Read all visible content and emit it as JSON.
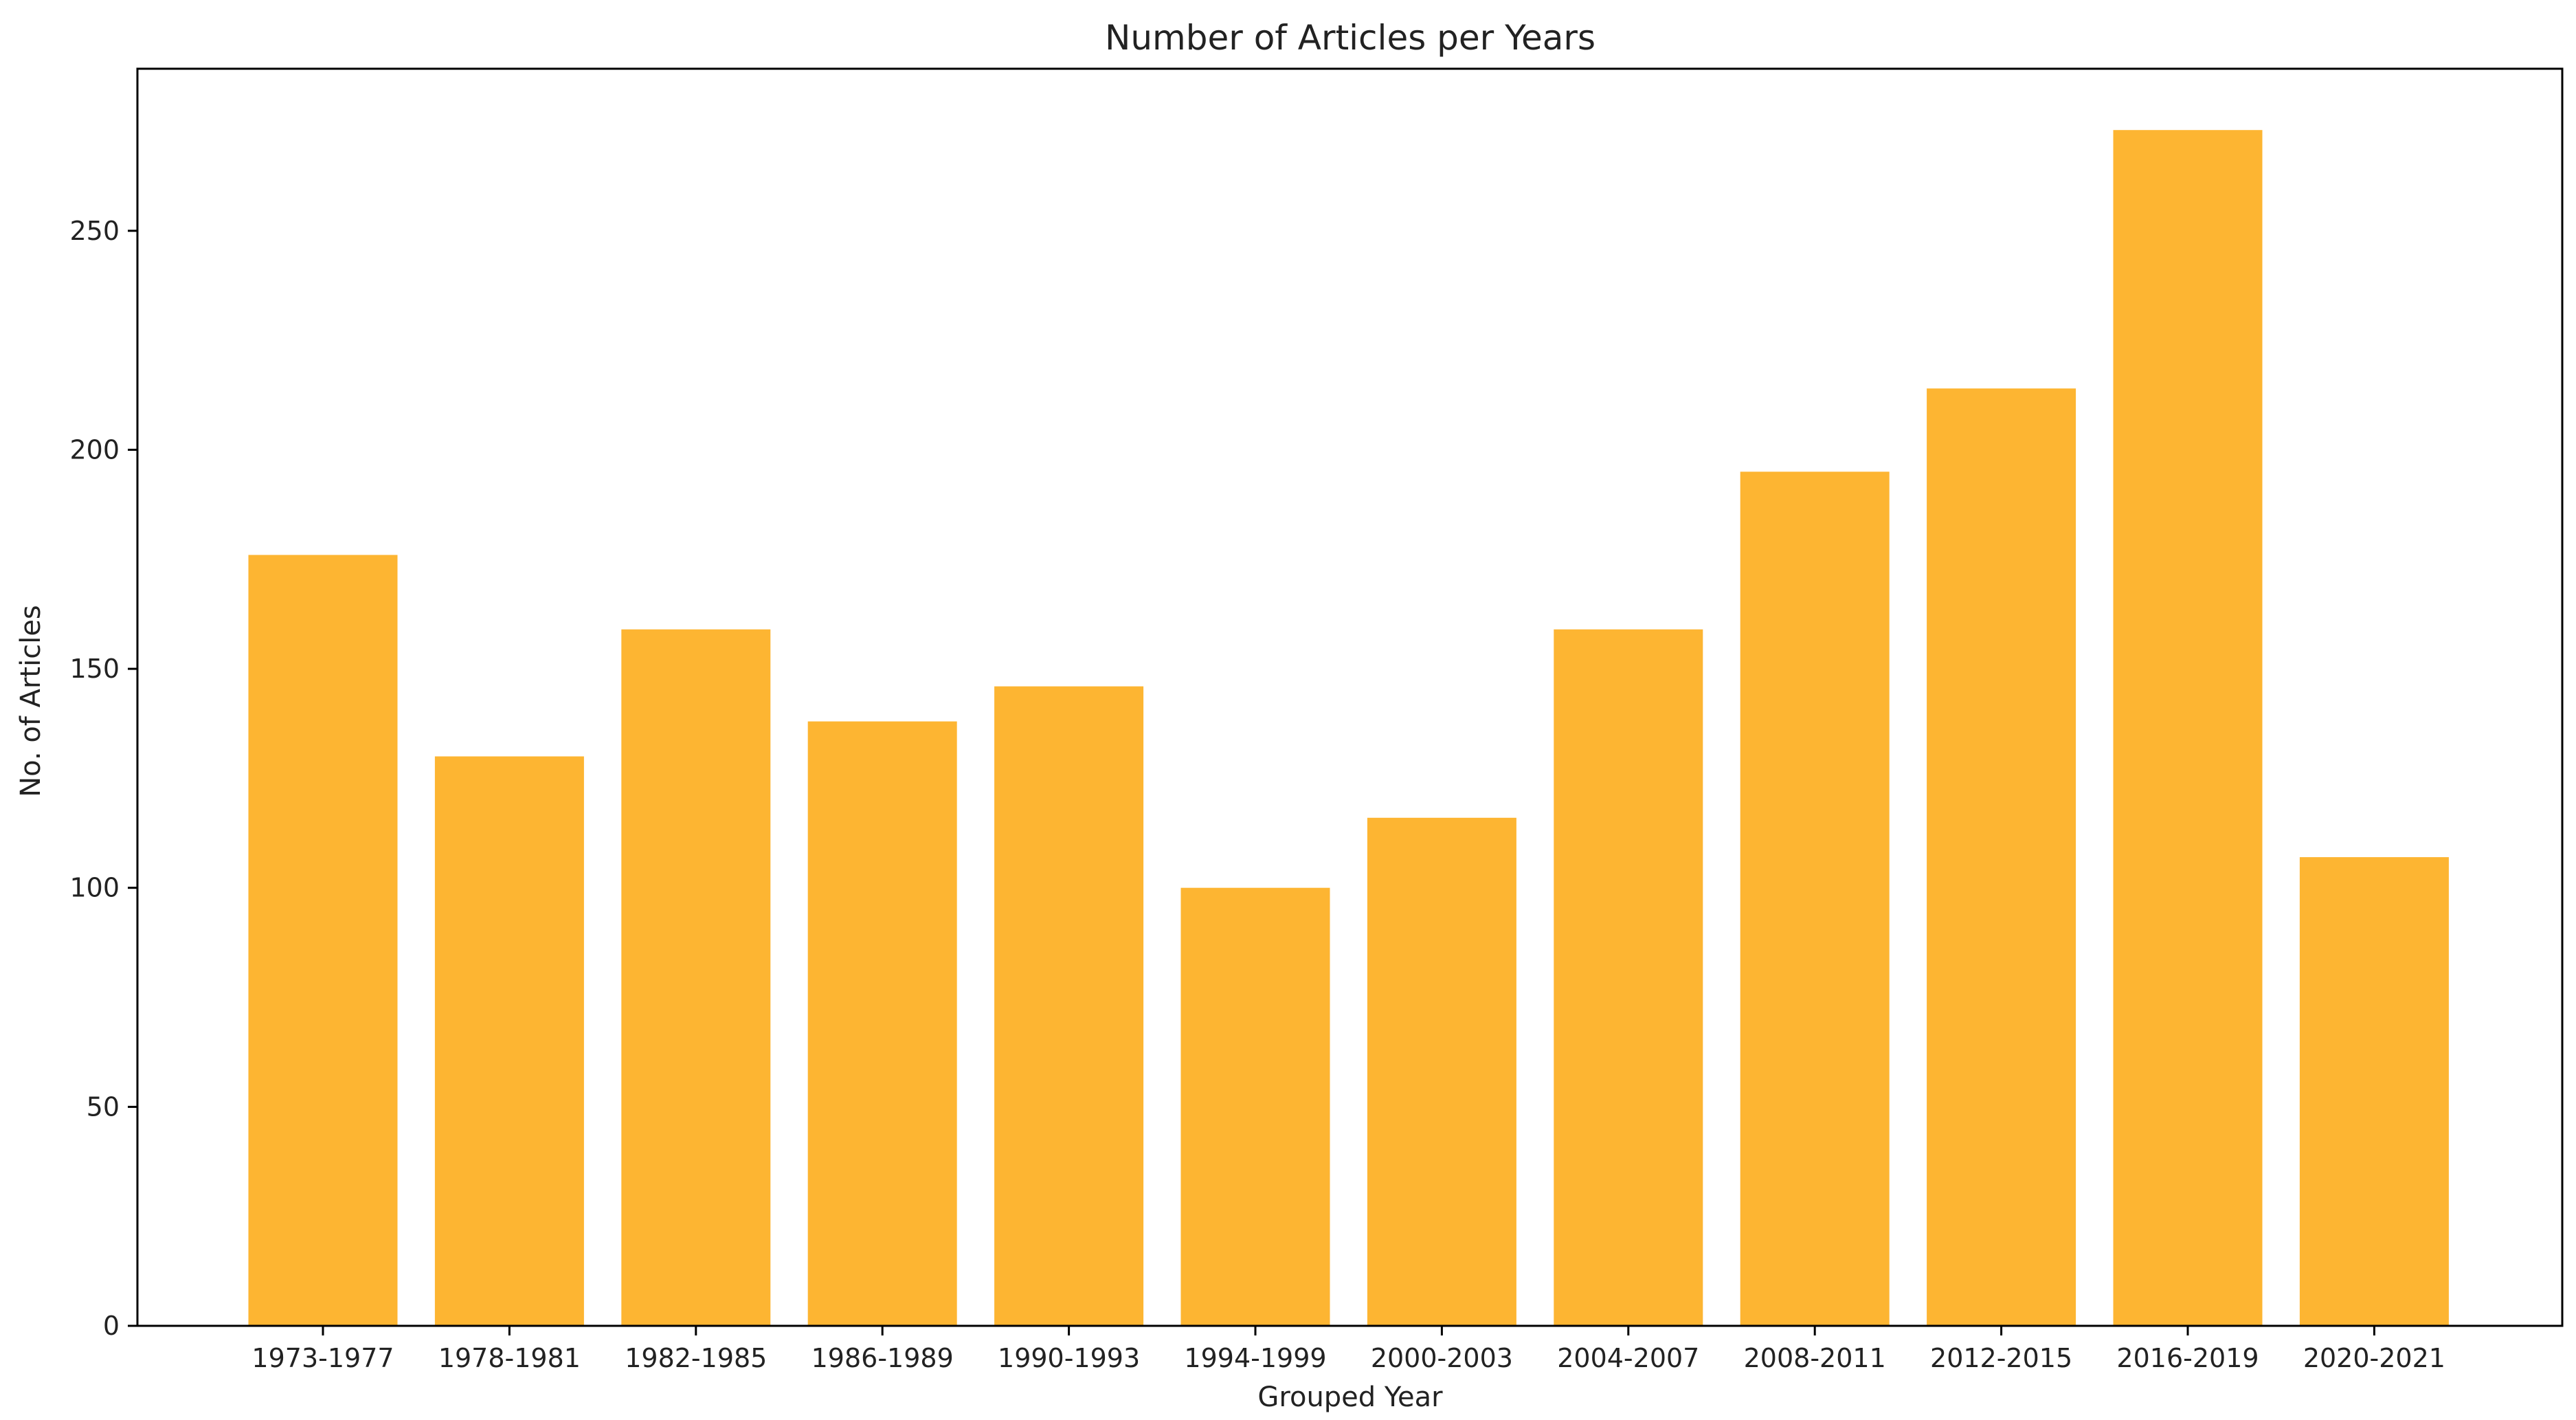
{
  "chart_data": {
    "type": "bar",
    "title": "Number of Articles per Years",
    "xlabel": "Grouped Year",
    "ylabel": "No. of Articles",
    "categories": [
      "1973-1977",
      "1978-1981",
      "1982-1985",
      "1986-1989",
      "1990-1993",
      "1994-1999",
      "2000-2003",
      "2004-2007",
      "2008-2011",
      "2012-2015",
      "2016-2019",
      "2020-2021"
    ],
    "values": [
      176,
      130,
      159,
      138,
      146,
      100,
      116,
      159,
      195,
      214,
      273,
      107
    ],
    "ylim": [
      0,
      287
    ],
    "yticks": [
      0,
      50,
      100,
      150,
      200,
      250
    ],
    "grid": false,
    "bar_color": "#FDB532",
    "axis_color": "#000000",
    "text_color": "#222222"
  }
}
